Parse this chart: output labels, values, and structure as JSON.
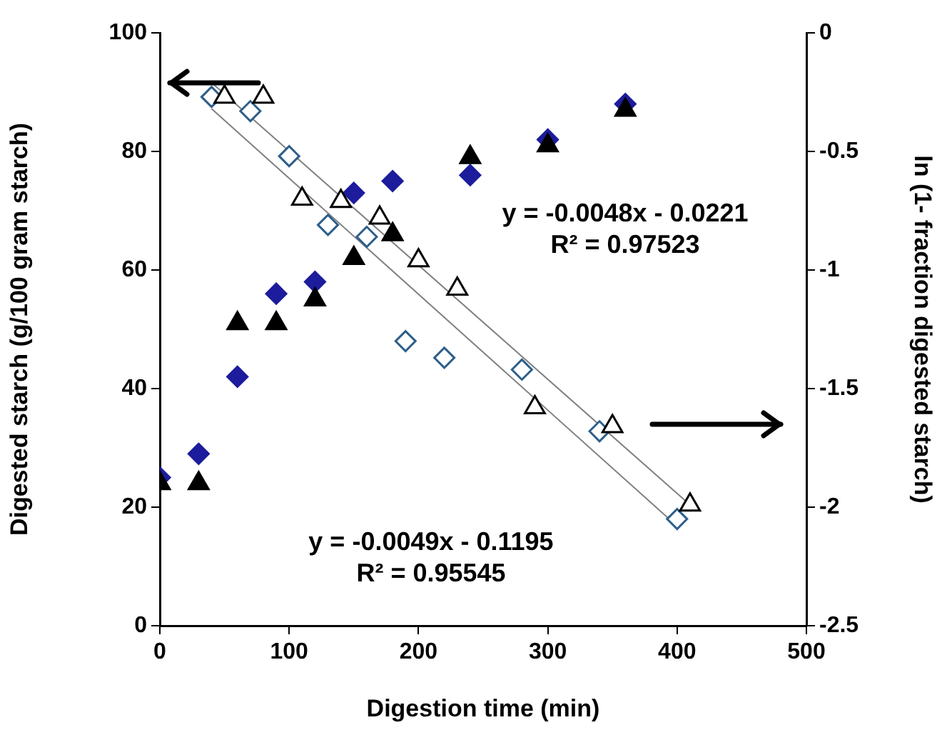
{
  "chart_data": {
    "type": "scatter",
    "xlabel": "Digestion time (min)",
    "ylabel": "Digested starch (g/100 gram starch)",
    "y2label": "ln (1- fraction digested starch)",
    "xlim": [
      0,
      500
    ],
    "xticks": [
      0,
      100,
      200,
      300,
      400,
      500
    ],
    "ylim": [
      0,
      100
    ],
    "yticks": [
      0,
      20,
      40,
      60,
      80,
      100
    ],
    "y2lim": [
      -2.5,
      0
    ],
    "y2ticks": [
      -2.5,
      {
        "value": -2,
        "label": "-2"
      },
      -1.5,
      {
        "value": -1,
        "label": "-1"
      },
      -0.5,
      0
    ],
    "grid": false,
    "legend": false,
    "annotations": [
      "y = -0.0048x - 0.0221\nR² = 0.97523",
      "y = -0.0049x - 0.1195\nR² = 0.95545"
    ],
    "series": [
      {
        "color": "#1c1c9c",
        "marker": "diamond",
        "x": [
          0,
          30,
          60,
          90,
          120,
          150,
          180,
          240,
          300,
          360
        ],
        "values": [
          25,
          29,
          42,
          56,
          58,
          73,
          75,
          76,
          82,
          88
        ]
      },
      {
        "color": "#000000",
        "marker": "triangle",
        "x": [
          0,
          30,
          60,
          90,
          120,
          150,
          180,
          240,
          300,
          360
        ],
        "values": [
          24,
          24,
          51,
          51,
          55,
          62,
          66,
          79,
          81,
          87
        ]
      },
      {
        "color": "#2e5f8a",
        "marker": "diamond",
        "axis": "y2",
        "x": [
          40,
          70,
          100,
          130,
          160,
          190,
          220,
          280,
          340,
          400
        ],
        "values": [
          -0.27,
          -0.33,
          -0.52,
          -0.81,
          -0.86,
          -1.3,
          -1.37,
          -1.42,
          -1.68,
          -2.05
        ]
      },
      {
        "color": "#000000",
        "marker": "triangle",
        "axis": "y2",
        "x": [
          50,
          80,
          110,
          140,
          170,
          200,
          230,
          290,
          350,
          410
        ],
        "values": [
          -0.27,
          -0.27,
          -0.7,
          -0.71,
          -0.78,
          -0.96,
          -1.08,
          -1.58,
          -1.66,
          -1.99
        ]
      },
      {
        "type": "line",
        "color": "#808080",
        "marker": "none",
        "axis": "y2",
        "x": [
          40,
          410
        ],
        "values": [
          -0.21,
          -1.99
        ]
      },
      {
        "type": "line",
        "color": "#808080",
        "marker": "none",
        "axis": "y2",
        "x": [
          40,
          400
        ],
        "values": [
          -0.32,
          -2.08
        ]
      }
    ]
  }
}
